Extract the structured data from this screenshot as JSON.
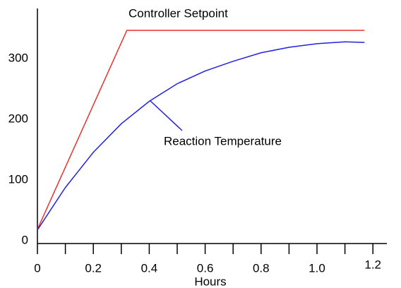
{
  "chart_data": {
    "type": "line",
    "xlabel": "Hours",
    "series": [
      {
        "name": "Controller Setpoint",
        "color": "#e8312f",
        "x": [
          0,
          0.32,
          1.17
        ],
        "values": [
          21,
          349,
          349
        ]
      },
      {
        "name": "Reaction Temperature",
        "color": "#2222dd",
        "x": [
          0,
          0.1,
          0.2,
          0.3,
          0.4,
          0.5,
          0.6,
          0.7,
          0.8,
          0.9,
          1.0,
          1.1,
          1.17
        ],
        "values": [
          20,
          90,
          148,
          195,
          232,
          261,
          282,
          298,
          312,
          321,
          327,
          330,
          329
        ]
      }
    ],
    "xlim": [
      0,
      1.25
    ],
    "ylim": [
      0,
      385
    ],
    "xticks": [
      0,
      0.2,
      0.4,
      0.6,
      0.8,
      {
        "value": 1,
        "label": "1.0"
      },
      1.2
    ],
    "xticks_minor": [
      0.1,
      0.3,
      0.5,
      0.7,
      0.9,
      1.1
    ],
    "yticks": [
      0,
      100,
      200,
      300
    ]
  }
}
